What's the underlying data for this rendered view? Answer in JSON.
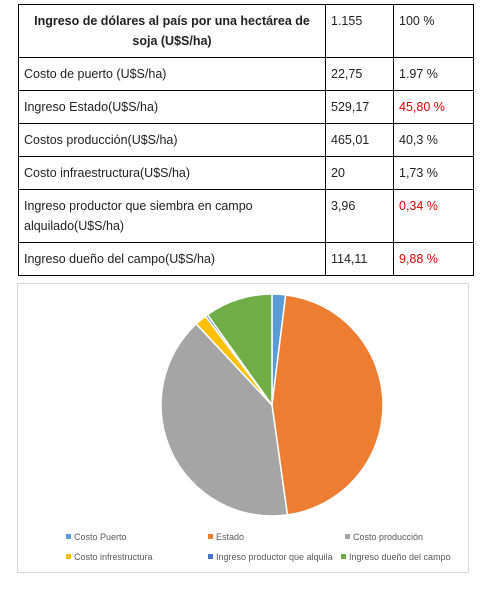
{
  "table": {
    "header": {
      "label": "Ingreso de dólares al país por una hectárea de soja (U$S/ha)",
      "value": "1.155",
      "percent": "100 %"
    },
    "rows": [
      {
        "label": "Costo de puerto (U$S/ha)",
        "value": "22,75",
        "percent": "1.97 %",
        "highlight": false
      },
      {
        "label": "Ingreso Estado(U$S/ha)",
        "value": "529,17",
        "percent": "45,80 %",
        "highlight": true
      },
      {
        "label": "Costos producción(U$S/ha)",
        "value": "465,01",
        "percent": "40,3 %",
        "highlight": false
      },
      {
        "label": "Costo infraestructura(U$S/ha)",
        "value": "20",
        "percent": "1,73 %",
        "highlight": false
      },
      {
        "label": "Ingreso productor que siembra en campo alquilado(U$S/ha)",
        "value": "3,96",
        "percent": "0,34 %",
        "highlight": true
      },
      {
        "label": "Ingreso dueño del campo(U$S/ha)",
        "value": "114,11",
        "percent": "9,88 %",
        "highlight": true
      }
    ]
  },
  "chart_data": {
    "type": "pie",
    "legend_position": "bottom",
    "series": [
      {
        "name": "Costo Puerto",
        "value": 22.75,
        "color": "#5b9bd5"
      },
      {
        "name": "Estado",
        "value": 529.17,
        "color": "#ed7d31"
      },
      {
        "name": "Costo producción",
        "value": 465.01,
        "color": "#a5a5a5"
      },
      {
        "name": "Costo infrestructura",
        "value": 20,
        "color": "#ffc000"
      },
      {
        "name": "Ingreso productor que alquila",
        "value": 3.96,
        "color": "#4472c4"
      },
      {
        "name": "Ingreso dueño del campo",
        "value": 114.11,
        "color": "#70ad47"
      }
    ]
  }
}
